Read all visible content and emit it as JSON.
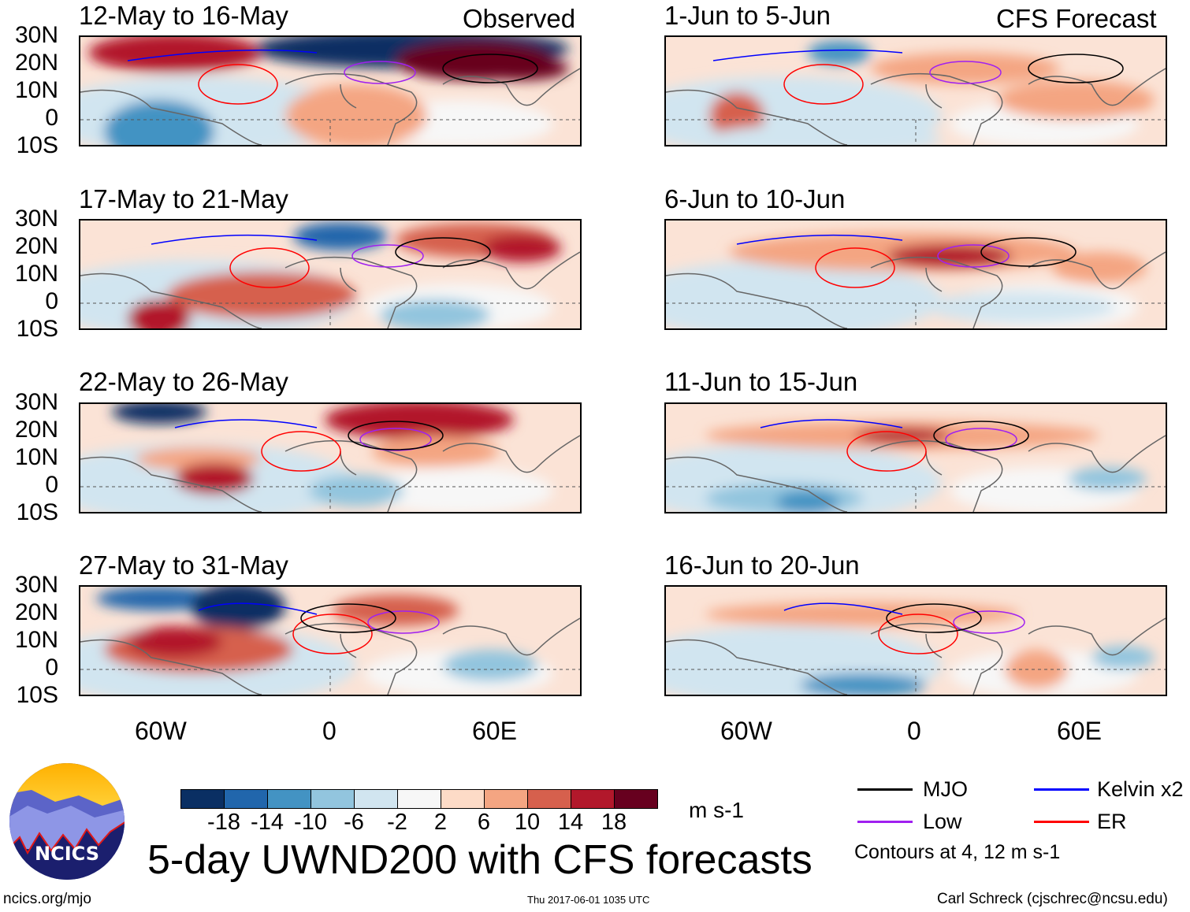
{
  "header": {
    "observed_label": "Observed",
    "forecast_label": "CFS Forecast"
  },
  "observed_panels": [
    {
      "title": "12-May to 16-May"
    },
    {
      "title": "17-May to 21-May"
    },
    {
      "title": "22-May to 26-May"
    },
    {
      "title": "27-May to 31-May"
    }
  ],
  "forecast_panels": [
    {
      "title": "1-Jun to 5-Jun"
    },
    {
      "title": "6-Jun to 10-Jun"
    },
    {
      "title": "11-Jun to 15-Jun"
    },
    {
      "title": "16-Jun to 20-Jun"
    }
  ],
  "lat_labels": [
    "30N",
    "20N",
    "10N",
    "0",
    "10S"
  ],
  "lon_labels": [
    "60W",
    "0",
    "60E"
  ],
  "colorbar": {
    "colors": [
      "#0a2f63",
      "#2166ac",
      "#4393c3",
      "#92c5de",
      "#d1e5f0",
      "#f7f7f7",
      "#fddbc7",
      "#f4a582",
      "#d6604d",
      "#b2182b",
      "#67001f"
    ],
    "labels": [
      "-18",
      "-14",
      "-10",
      "-6",
      "-2",
      "2",
      "6",
      "10",
      "14",
      "18"
    ],
    "units": "m s-1"
  },
  "legend": {
    "items": [
      {
        "label": "MJO",
        "color": "#000000"
      },
      {
        "label": "Kelvin x2",
        "color": "#0000ff"
      },
      {
        "label": "Low",
        "color": "#a020f0"
      },
      {
        "label": "ER",
        "color": "#ff0000"
      }
    ],
    "note": "Contours at 4, 12 m s-1"
  },
  "title": "5-day UWND200 with CFS forecasts",
  "logo_text": "NCICS",
  "footer": {
    "url": "ncics.org/mjo",
    "timestamp": "Thu 2017-06-01 1035 UTC",
    "author": "Carl Schreck (cjschrec@ncsu.edu)"
  }
}
